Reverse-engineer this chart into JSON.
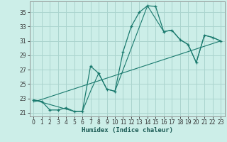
{
  "xlabel": "Humidex (Indice chaleur)",
  "bg_color": "#cceee8",
  "grid_color": "#aad4ce",
  "line_color": "#1a7a6e",
  "xlim": [
    -0.5,
    23.5
  ],
  "ylim": [
    20.5,
    36.5
  ],
  "yticks": [
    21,
    23,
    25,
    27,
    29,
    31,
    33,
    35
  ],
  "xticks": [
    0,
    1,
    2,
    3,
    4,
    5,
    6,
    7,
    8,
    9,
    10,
    11,
    12,
    13,
    14,
    15,
    16,
    17,
    18,
    19,
    20,
    21,
    22,
    23
  ],
  "main_line": {
    "x": [
      0,
      1,
      2,
      3,
      4,
      5,
      6,
      7,
      8,
      9,
      10,
      11,
      12,
      13,
      14,
      15,
      16,
      17,
      18,
      19,
      20,
      21,
      22,
      23
    ],
    "y": [
      22.8,
      22.6,
      21.4,
      21.4,
      21.7,
      21.2,
      21.2,
      27.5,
      26.5,
      24.3,
      24.0,
      29.5,
      33.0,
      35.0,
      35.9,
      35.8,
      32.3,
      32.5,
      31.2,
      30.5,
      28.0,
      31.8,
      31.5,
      31.0
    ]
  },
  "trend_line1": {
    "x": [
      0,
      23
    ],
    "y": [
      22.5,
      31.0
    ]
  },
  "trend_line2": {
    "x": [
      0,
      5,
      6,
      7,
      8,
      9,
      10,
      14,
      16,
      17,
      18,
      19,
      20,
      21,
      22,
      23
    ],
    "y": [
      22.8,
      21.2,
      21.2,
      24.0,
      26.5,
      24.3,
      24.0,
      35.9,
      32.3,
      32.5,
      31.2,
      30.5,
      28.0,
      31.8,
      31.5,
      31.0
    ]
  }
}
